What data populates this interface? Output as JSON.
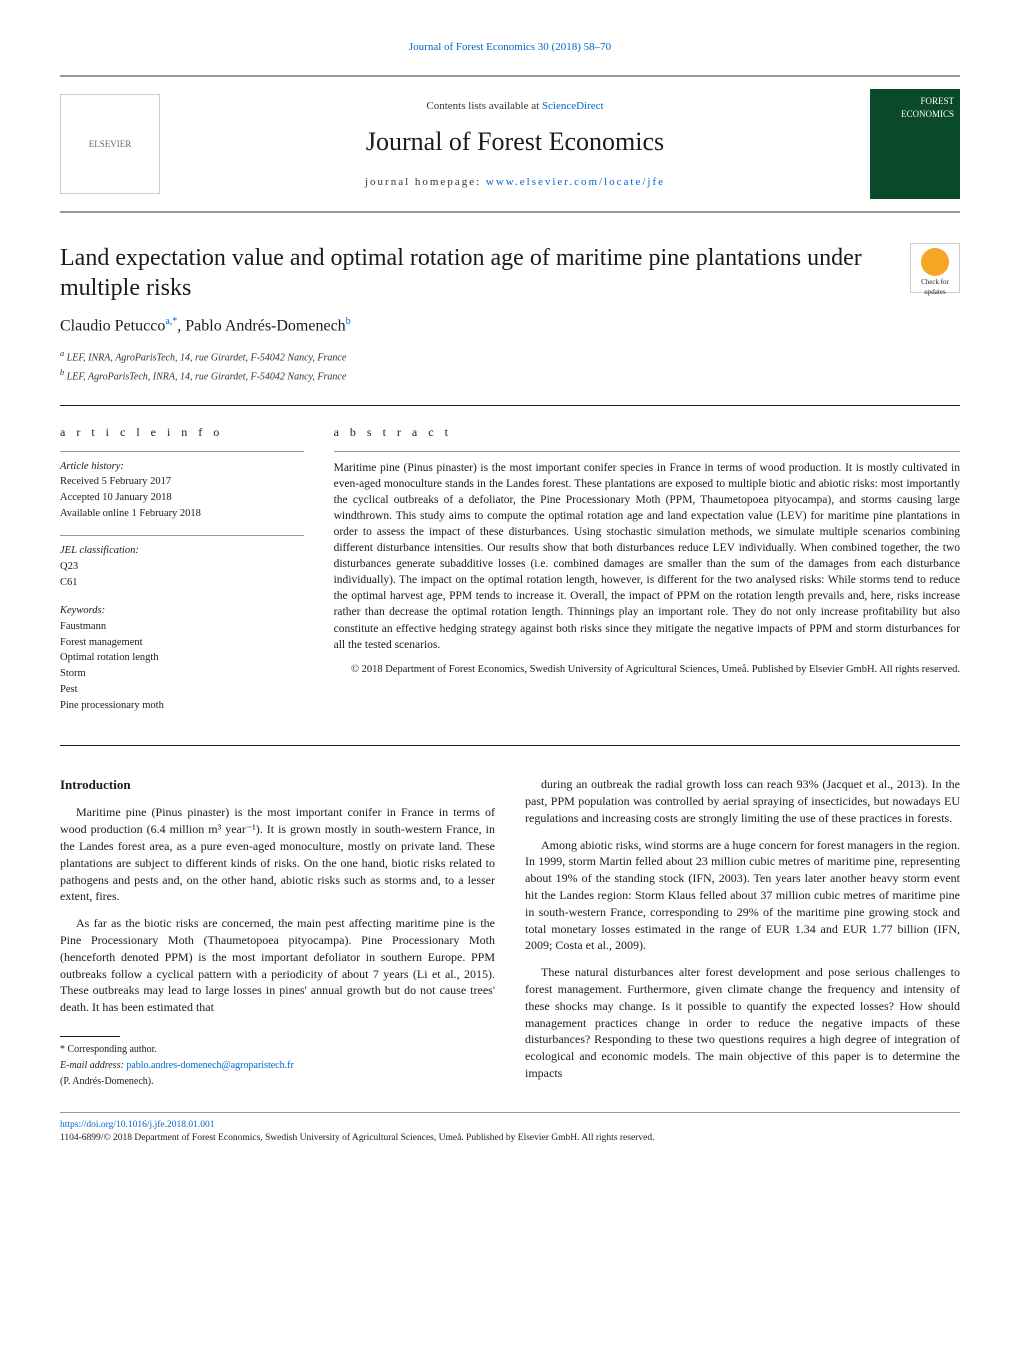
{
  "topLink": {
    "text": "Journal of Forest Economics 30 (2018) 58–70"
  },
  "header": {
    "contentsPrefix": "Contents lists available at ",
    "contentsLink": "ScienceDirect",
    "journalName": "Journal of Forest Economics",
    "homepagePrefix": "journal homepage: ",
    "homepageLink": "www.elsevier.com/locate/jfe",
    "elsevierLabel": "ELSEVIER",
    "coverText": "FOREST ECONOMICS"
  },
  "title": "Land expectation value and optimal rotation age of maritime pine plantations under multiple risks",
  "checkUpdates": "Check for updates",
  "authors": [
    {
      "name": "Claudio Petucco",
      "sup": "a,*"
    },
    {
      "name": "Pablo Andrés-Domenech",
      "sup": "b"
    }
  ],
  "affiliations": [
    {
      "sup": "a",
      "text": "LEF, INRA, AgroParisTech, 14, rue Girardet, F-54042 Nancy, France"
    },
    {
      "sup": "b",
      "text": "LEF, AgroParisTech, INRA, 14, rue Girardet, F-54042 Nancy, France"
    }
  ],
  "articleInfo": {
    "heading": "a r t i c l e   i n f o",
    "historyLabel": "Article history:",
    "history": [
      "Received 5 February 2017",
      "Accepted 10 January 2018",
      "Available online 1 February 2018"
    ],
    "jelLabel": "JEL classification:",
    "jel": [
      "Q23",
      "C61"
    ],
    "keywordsLabel": "Keywords:",
    "keywords": [
      "Faustmann",
      "Forest management",
      "Optimal rotation length",
      "Storm",
      "Pest",
      "Pine processionary moth"
    ]
  },
  "abstract": {
    "heading": "a b s t r a c t",
    "text": "Maritime pine (Pinus pinaster) is the most important conifer species in France in terms of wood production. It is mostly cultivated in even-aged monoculture stands in the Landes forest. These plantations are exposed to multiple biotic and abiotic risks: most importantly the cyclical outbreaks of a defoliator, the Pine Processionary Moth (PPM, Thaumetopoea pityocampa), and storms causing large windthrown. This study aims to compute the optimal rotation age and land expectation value (LEV) for maritime pine plantations in order to assess the impact of these disturbances. Using stochastic simulation methods, we simulate multiple scenarios combining different disturbance intensities. Our results show that both disturbances reduce LEV individually. When combined together, the two disturbances generate subadditive losses (i.e. combined damages are smaller than the sum of the damages from each disturbance individually). The impact on the optimal rotation length, however, is different for the two analysed risks: While storms tend to reduce the optimal harvest age, PPM tends to increase it. Overall, the impact of PPM on the rotation length prevails and, here, risks increase rather than decrease the optimal rotation length. Thinnings play an important role. They do not only increase profitability but also constitute an effective hedging strategy against both risks since they mitigate the negative impacts of PPM and storm disturbances for all the tested scenarios.",
    "copyright": "© 2018 Department of Forest Economics, Swedish University of Agricultural Sciences, Umeå. Published by Elsevier GmbH. All rights reserved."
  },
  "body": {
    "introHeading": "Introduction",
    "leftParas": [
      "Maritime pine (Pinus pinaster) is the most important conifer in France in terms of wood production (6.4 million m³ year⁻¹). It is grown mostly in south-western France, in the Landes forest area, as a pure even-aged monoculture, mostly on private land. These plantations are subject to different kinds of risks. On the one hand, biotic risks related to pathogens and pests and, on the other hand, abiotic risks such as storms and, to a lesser extent, fires.",
      "As far as the biotic risks are concerned, the main pest affecting maritime pine is the Pine Processionary Moth (Thaumetopoea pityocampa). Pine Processionary Moth (henceforth denoted PPM) is the most important defoliator in southern Europe. PPM outbreaks follow a cyclical pattern with a periodicity of about 7 years (Li et al., 2015). These outbreaks may lead to large losses in pines' annual growth but do not cause trees' death. It has been estimated that"
    ],
    "rightParas": [
      "during an outbreak the radial growth loss can reach 93% (Jacquet et al., 2013). In the past, PPM population was controlled by aerial spraying of insecticides, but nowadays EU regulations and increasing costs are strongly limiting the use of these practices in forests.",
      "Among abiotic risks, wind storms are a huge concern for forest managers in the region. In 1999, storm Martin felled about 23 million cubic metres of maritime pine, representing about 19% of the standing stock (IFN, 2003). Ten years later another heavy storm event hit the Landes region: Storm Klaus felled about 37 million cubic metres of maritime pine in south-western France, corresponding to 29% of the maritime pine growing stock and total monetary losses estimated in the range of EUR 1.34 and EUR 1.77 billion (IFN, 2009; Costa et al., 2009).",
      "These natural disturbances alter forest development and pose serious challenges to forest management. Furthermore, given climate change the frequency and intensity of these shocks may change. Is it possible to quantify the expected losses? How should management practices change in order to reduce the negative impacts of these disturbances? Responding to these two questions requires a high degree of integration of ecological and economic models. The main objective of this paper is to determine the impacts"
    ]
  },
  "footnotes": {
    "corresponding": "* Corresponding author.",
    "emailLabel": "E-mail address: ",
    "email": "pablo.andres-domenech@agroparistech.fr",
    "emailOwner": "(P. Andrés-Domenech)."
  },
  "footer": {
    "doi": "https://doi.org/10.1016/j.jfe.2018.01.001",
    "issnLine": "1104-6899/© 2018 Department of Forest Economics, Swedish University of Agricultural Sciences, Umeå. Published by Elsevier GmbH. All rights reserved."
  },
  "colors": {
    "text": "#1a1a1a",
    "link": "#0066cc",
    "rule": "#999999",
    "coverBg": "#0a4a2a",
    "checkCircle": "#f5a623"
  },
  "typography": {
    "bodyFontFamily": "Georgia, 'Times New Roman', serif",
    "bodyFontSize": 13,
    "titleFontSize": 24,
    "journalNameFontSize": 26,
    "abstractFontSize": 11.5,
    "infoFontSize": 10.5,
    "footnoteFontSize": 10
  },
  "layout": {
    "pageWidth": 1020,
    "pageHeight": 1351,
    "columns": 2,
    "columnGap": 30
  }
}
